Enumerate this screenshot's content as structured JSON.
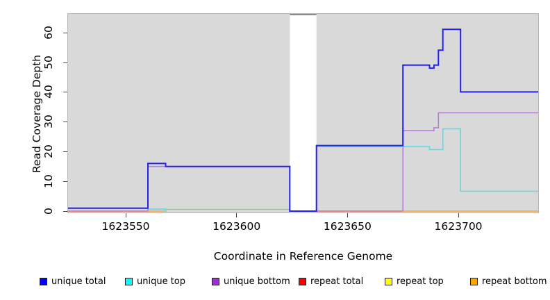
{
  "chart_data": {
    "type": "line",
    "subtype": "step-coverage",
    "title": "",
    "xlabel": "Coordinate in Reference Genome",
    "ylabel": "Read Coverage Depth",
    "xlim": [
      1623524,
      1623736
    ],
    "ylim": [
      0,
      66
    ],
    "x_ticks": [
      1623550,
      1623600,
      1623650,
      1623700
    ],
    "y_ticks": [
      0,
      10,
      20,
      30,
      40,
      50,
      60
    ],
    "grid": false,
    "panel_background": "#d9d9d9",
    "masked_region": {
      "start": 1623624,
      "end": 1623636,
      "fill": "#ffffff",
      "cap_color": "#8c8c8c"
    },
    "series": [
      {
        "name": "repeat total",
        "legend_color": "#ff0000",
        "line_color": "#e0697a",
        "width": 1.4,
        "segments": [
          [
            1623524,
            1623560,
            0
          ],
          [
            1623636,
            1623675,
            0
          ]
        ]
      },
      {
        "name": "repeat bottom",
        "legend_color": "#ffa500",
        "line_color": "#ff9f38",
        "width": 1.4,
        "segments": [
          [
            1623560,
            1623568,
            0
          ],
          [
            1623675,
            1623736,
            0
          ]
        ]
      },
      {
        "name": "repeat top",
        "legend_color": "#ffff00",
        "line_color": "#8fcb8f",
        "width": 1.4,
        "note": "appears pale green where it overlaps unique top near zero",
        "segments": [
          [
            1623568,
            1623624,
            0.6
          ]
        ]
      },
      {
        "name": "unique bottom",
        "legend_color": "#9932cc",
        "line_color": "#b47fd9",
        "width": 1.6,
        "segments": [
          [
            1623560,
            1623560,
            0
          ],
          [
            1623560,
            1623624,
            15
          ],
          [
            1623624,
            1623636,
            0
          ],
          [
            1623675,
            1623675,
            0
          ],
          [
            1623675,
            1623689,
            27
          ],
          [
            1623689,
            1623691,
            28
          ],
          [
            1623691,
            1623736,
            33
          ]
        ]
      },
      {
        "name": "unique top",
        "legend_color": "#00ffff",
        "line_color": "#59dcea",
        "width": 1.6,
        "segments": [
          [
            1623560,
            1623568,
            1
          ],
          [
            1623568,
            1623568,
            0
          ],
          [
            1623636,
            1623687,
            22
          ],
          [
            1623687,
            1623693,
            21
          ],
          [
            1623693,
            1623701,
            28
          ],
          [
            1623701,
            1623736,
            7
          ]
        ]
      },
      {
        "name": "unique total",
        "legend_color": "#0000ff",
        "line_color": "#2420f5",
        "width": 2,
        "segments": [
          [
            1623524,
            1623560,
            1
          ],
          [
            1623560,
            1623568,
            16
          ],
          [
            1623568,
            1623624,
            15
          ],
          [
            1623624,
            1623636,
            0
          ],
          [
            1623636,
            1623675,
            22
          ],
          [
            1623675,
            1623687,
            49
          ],
          [
            1623687,
            1623689,
            48
          ],
          [
            1623689,
            1623691,
            49
          ],
          [
            1623691,
            1623693,
            54
          ],
          [
            1623693,
            1623701,
            61
          ],
          [
            1623701,
            1623736,
            40
          ]
        ]
      }
    ]
  },
  "legend": {
    "items": [
      {
        "label": "unique total",
        "color": "#0000ff"
      },
      {
        "label": "unique top",
        "color": "#00ffff"
      },
      {
        "label": "unique bottom",
        "color": "#9932cc"
      },
      {
        "label": "repeat total",
        "color": "#ff0000"
      },
      {
        "label": "repeat top",
        "color": "#ffff00"
      },
      {
        "label": "repeat bottom",
        "color": "#ffa500"
      }
    ]
  }
}
